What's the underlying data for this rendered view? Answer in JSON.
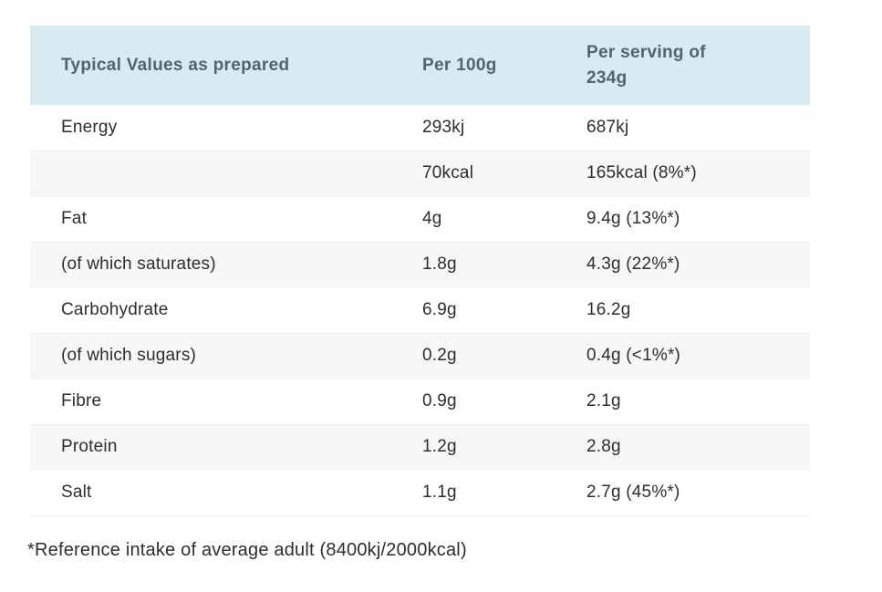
{
  "table": {
    "columns": [
      "Typical Values as prepared",
      "Per 100g",
      "Per serving of 234g"
    ],
    "rows": [
      [
        "Energy",
        "293kj",
        "687kj"
      ],
      [
        "",
        "70kcal",
        "165kcal (8%*)"
      ],
      [
        "Fat",
        "4g",
        "9.4g (13%*)"
      ],
      [
        "(of which saturates)",
        "1.8g",
        "4.3g (22%*)"
      ],
      [
        "Carbohydrate",
        "6.9g",
        "16.2g"
      ],
      [
        "(of which sugars)",
        "0.2g",
        "0.4g (<1%*)"
      ],
      [
        "Fibre",
        "0.9g",
        "2.1g"
      ],
      [
        "Protein",
        "1.2g",
        "2.8g"
      ],
      [
        "Salt",
        "1.1g",
        "2.7g (45%*)"
      ]
    ],
    "footnote": "*Reference intake of average adult (8400kj/2000kcal)"
  },
  "colors": {
    "header_bg": "#d9eaf3",
    "row_alt_bg": "#f7f7f8",
    "header_text": "#54646e",
    "body_text": "#2d2d2d"
  },
  "chart_data": {
    "type": "table",
    "title": "Typical Values as prepared",
    "columns": [
      "Typical Values as prepared",
      "Per 100g",
      "Per serving of 234g"
    ],
    "rows": [
      [
        "Energy",
        "293kj",
        "687kj"
      ],
      [
        "",
        "70kcal",
        "165kcal (8%*)"
      ],
      [
        "Fat",
        "4g",
        "9.4g (13%*)"
      ],
      [
        "(of which saturates)",
        "1.8g",
        "4.3g (22%*)"
      ],
      [
        "Carbohydrate",
        "6.9g",
        "16.2g"
      ],
      [
        "(of which sugars)",
        "0.2g",
        "0.4g (<1%*)"
      ],
      [
        "Fibre",
        "0.9g",
        "2.1g"
      ],
      [
        "Protein",
        "1.2g",
        "2.8g"
      ],
      [
        "Salt",
        "1.1g",
        "2.7g (45%*)"
      ]
    ]
  }
}
